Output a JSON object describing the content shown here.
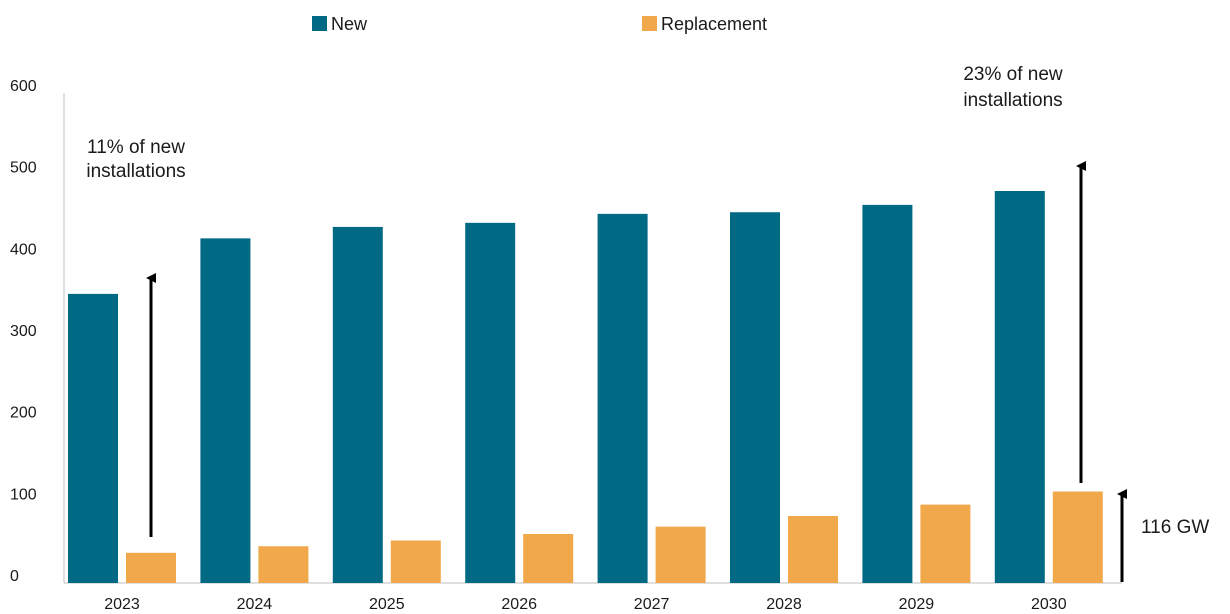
{
  "chart_data": {
    "type": "bar",
    "categories": [
      "2023",
      "2024",
      "2025",
      "2026",
      "2027",
      "2028",
      "2029",
      "2030"
    ],
    "series": [
      {
        "name": "New",
        "color": "#006a85",
        "values": [
          354,
          422,
          436,
          441,
          452,
          454,
          463,
          480
        ]
      },
      {
        "name": "Replacement",
        "color": "#f0a84a",
        "values": [
          37,
          45,
          52,
          60,
          69,
          82,
          96,
          112
        ]
      }
    ],
    "ylim": [
      0,
      600
    ],
    "yticks": [
      0,
      100,
      200,
      300,
      400,
      500,
      600
    ],
    "grid": false,
    "legend_position": "top",
    "annotations": {
      "left_line1": "11% of new",
      "left_line2": "installations",
      "right_line1": "23% of new",
      "right_line2": "installations",
      "gw_label": "116 GW"
    }
  }
}
